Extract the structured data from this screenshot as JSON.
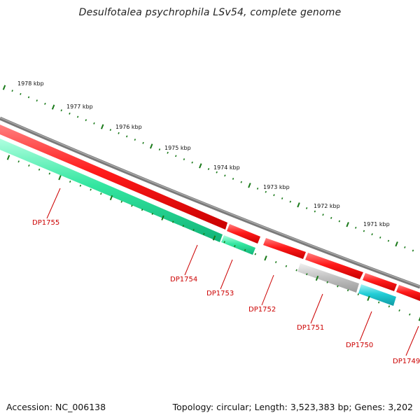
{
  "title": "Desulfotalea psychrophila LSv54, complete genome",
  "footer": {
    "accession": "Accession: NC_006138",
    "topology": "Topology: circular; Length: 3,523,383 bp; Genes: 3,202"
  },
  "colors": {
    "backbone": "#7a7a7a",
    "forward_gene": "#ff1a1a",
    "reverse_gene_green": "#33e6a0",
    "reverse_gene_cyan": "#22cdd6",
    "other_gene": "#bfbfbf",
    "tick": "#1a7a1a",
    "gene_label": "#cc0000"
  },
  "ruler": {
    "labels": [
      "1978 kbp",
      "1977 kbp",
      "1976 kbp",
      "1975 kbp",
      "1974 kbp",
      "1973 kbp",
      "1972 kbp",
      "1971 kbp"
    ]
  },
  "genes": [
    {
      "id": "DP1755",
      "strand": "reverse",
      "color": "green"
    },
    {
      "id": "DP1754",
      "strand": "reverse",
      "color": "green"
    },
    {
      "id": "DP1753",
      "strand": "reverse",
      "color": "green"
    },
    {
      "id": "DP1752",
      "strand": "forward",
      "color": "red"
    },
    {
      "id": "DP1751",
      "strand": "reverse",
      "color": "grey"
    },
    {
      "id": "DP1750",
      "strand": "reverse",
      "color": "cyan"
    },
    {
      "id": "DP1749",
      "strand": "forward",
      "color": "red"
    }
  ]
}
